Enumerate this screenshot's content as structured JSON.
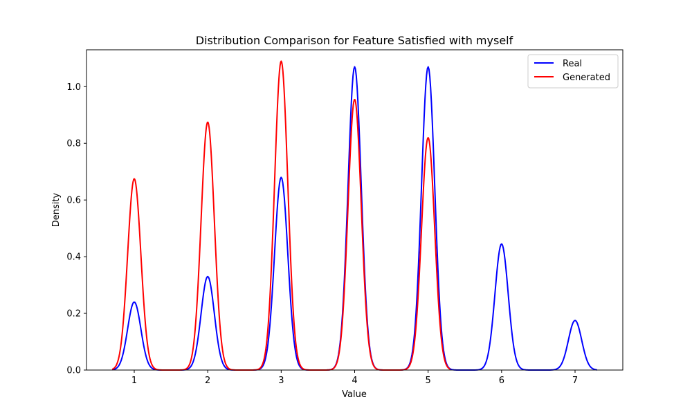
{
  "chart_data": {
    "type": "line",
    "title": "Distribution Comparison for Feature Satisfied with myself",
    "xlabel": "Value",
    "ylabel": "Density",
    "xlim": [
      0.35,
      7.65
    ],
    "ylim": [
      0,
      1.13
    ],
    "xticks": [
      1,
      2,
      3,
      4,
      5,
      6,
      7
    ],
    "yticks": [
      0.0,
      0.2,
      0.4,
      0.6,
      0.8,
      1.0
    ],
    "ytick_labels": [
      "0.0",
      "0.2",
      "0.4",
      "0.6",
      "0.8",
      "1.0"
    ],
    "grid": false,
    "legend_position": "top-right",
    "series": [
      {
        "name": "Real",
        "color": "#0000ff",
        "x_range": [
          0.7,
          7.3
        ],
        "peaks": [
          {
            "x": 1,
            "density": 0.24
          },
          {
            "x": 2,
            "density": 0.33
          },
          {
            "x": 3,
            "density": 0.68
          },
          {
            "x": 4,
            "density": 1.07
          },
          {
            "x": 5,
            "density": 1.07
          },
          {
            "x": 6,
            "density": 0.445
          },
          {
            "x": 7,
            "density": 0.175
          }
        ]
      },
      {
        "name": "Generated",
        "color": "#ff0000",
        "x_range": [
          0.7,
          5.3
        ],
        "peaks": [
          {
            "x": 1,
            "density": 0.675
          },
          {
            "x": 2,
            "density": 0.875
          },
          {
            "x": 3,
            "density": 1.09
          },
          {
            "x": 4,
            "density": 0.955
          },
          {
            "x": 5,
            "density": 0.82
          }
        ]
      }
    ]
  }
}
